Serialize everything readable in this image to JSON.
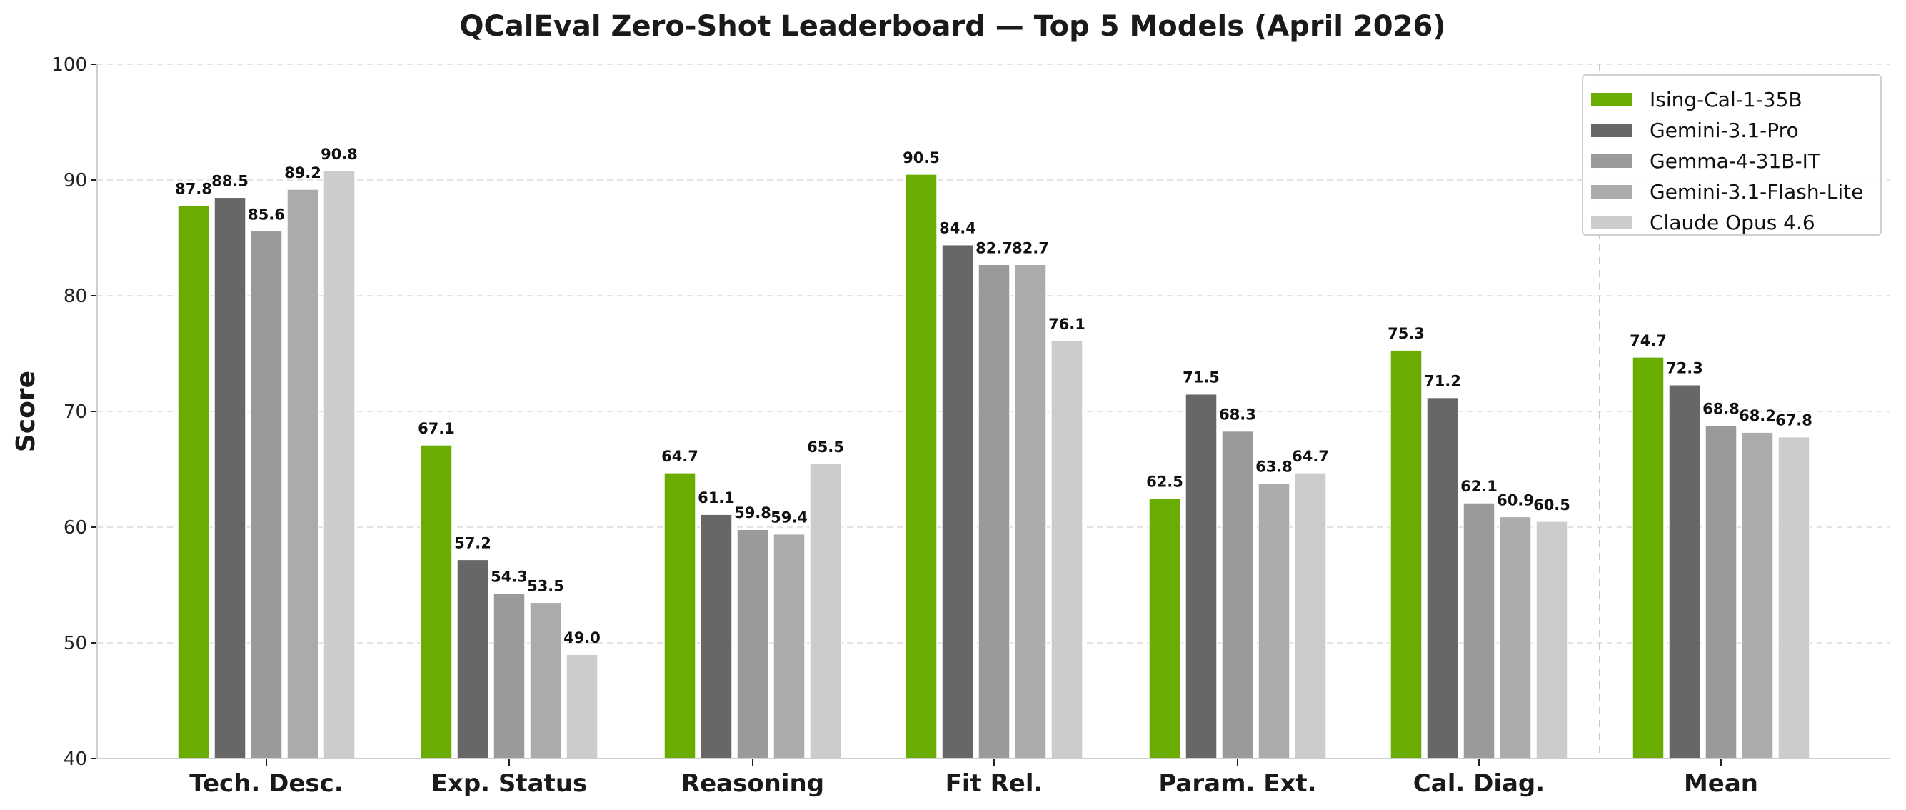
{
  "chart_data": {
    "type": "bar",
    "title": "QCalEval Zero-Shot Leaderboard — Top 5 Models (April 2026)",
    "xlabel": "",
    "ylabel": "Score",
    "ylim": [
      40,
      100
    ],
    "yticks": [
      "40",
      "50",
      "60",
      "70",
      "80",
      "90",
      "100"
    ],
    "grid": true,
    "legend_position": "top-right",
    "categories": [
      "Tech. Desc.",
      "Exp. Status",
      "Reasoning",
      "Fit Rel.",
      "Param. Ext.",
      "Cal. Diag.",
      "Mean"
    ],
    "series": [
      {
        "name": "Ising-Cal-1-35B",
        "color": "#6aad00",
        "values": [
          87.8,
          67.1,
          64.7,
          90.5,
          62.5,
          75.3,
          74.7
        ]
      },
      {
        "name": "Gemini-3.1-Pro",
        "color": "#676767",
        "values": [
          88.5,
          57.2,
          61.1,
          84.4,
          71.5,
          71.2,
          72.3
        ]
      },
      {
        "name": "Gemma-4-31B-IT",
        "color": "#9a9a9a",
        "values": [
          85.6,
          54.3,
          59.8,
          82.7,
          68.3,
          62.1,
          68.8
        ]
      },
      {
        "name": "Gemini-3.1-Flash-Lite",
        "color": "#ababab",
        "values": [
          89.2,
          53.5,
          59.4,
          82.7,
          63.8,
          60.9,
          68.2
        ]
      },
      {
        "name": "Claude Opus 4.6",
        "color": "#cccccc",
        "values": [
          90.8,
          49.0,
          65.5,
          76.1,
          64.7,
          60.5,
          67.8
        ]
      }
    ]
  }
}
